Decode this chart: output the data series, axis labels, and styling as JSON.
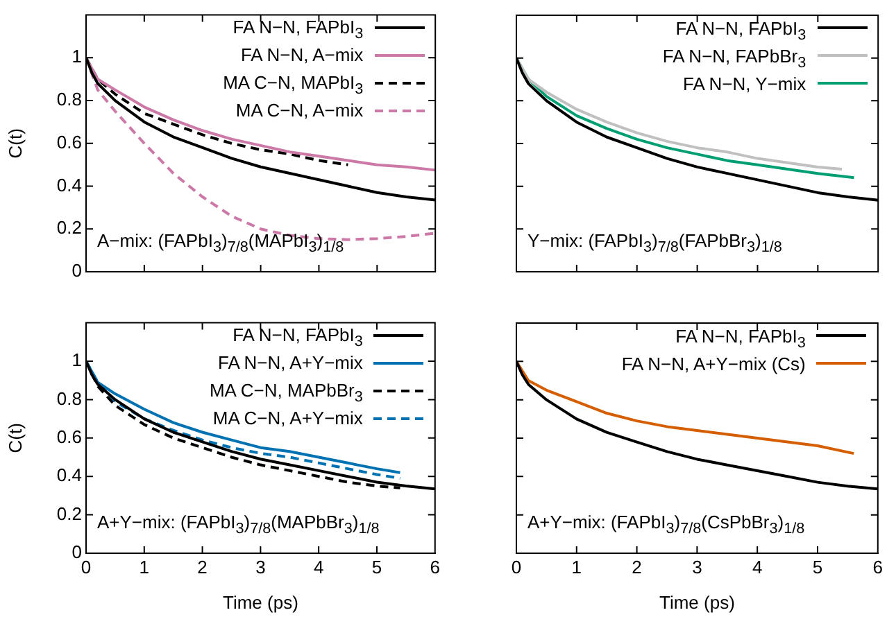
{
  "chart_data": [
    {
      "type": "line",
      "ylabel": "C(t)",
      "xlim": [
        0,
        6
      ],
      "ylim": [
        0,
        1.2
      ],
      "xticks": [
        0,
        1,
        2,
        3,
        4,
        5,
        6
      ],
      "yticks": [
        0,
        0.2,
        0.4,
        0.6,
        0.8,
        1
      ],
      "legend": "top right",
      "tick_labels": "y",
      "annotations": [
        "A−mix: (FAPbI$_{3}$)$_{7/8}$(MAPbI$_{3}$)$_{1/8}$"
      ],
      "series": [
        {
          "name": "FA N−N, FAPbI$_{3}$",
          "color": "#000000",
          "line_style": "solid",
          "x": [
            0,
            0.1,
            0.2,
            0.5,
            1,
            1.5,
            2,
            2.5,
            3,
            3.5,
            4,
            4.5,
            5,
            5.5,
            6
          ],
          "values": [
            1,
            0.93,
            0.88,
            0.8,
            0.7,
            0.63,
            0.58,
            0.53,
            0.49,
            0.46,
            0.43,
            0.4,
            0.37,
            0.35,
            0.335
          ]
        },
        {
          "name": "FA N−N, A−mix",
          "color": "#cc79a7",
          "line_style": "solid",
          "x": [
            0,
            0.2,
            0.5,
            1,
            1.5,
            2,
            2.5,
            3,
            3.5,
            4,
            4.5,
            5,
            5.5,
            6
          ],
          "values": [
            1,
            0.9,
            0.85,
            0.77,
            0.71,
            0.66,
            0.62,
            0.59,
            0.56,
            0.54,
            0.52,
            0.5,
            0.49,
            0.475
          ]
        },
        {
          "name": "MA C−N, MAPbI$_{3}$",
          "color": "#000000",
          "line_style": "dashed",
          "x": [
            0,
            0.2,
            0.5,
            1,
            1.5,
            2,
            2.5,
            3,
            3.5,
            4,
            4.5
          ],
          "values": [
            1,
            0.9,
            0.83,
            0.74,
            0.69,
            0.64,
            0.6,
            0.57,
            0.55,
            0.52,
            0.5
          ]
        },
        {
          "name": "MA C−N, A−mix",
          "color": "#cc79a7",
          "line_style": "dashed",
          "x": [
            0,
            0.2,
            0.5,
            1,
            1.5,
            2,
            2.5,
            3,
            3.5,
            4,
            4.5,
            5,
            5.5,
            6
          ],
          "values": [
            1,
            0.85,
            0.75,
            0.6,
            0.46,
            0.35,
            0.26,
            0.2,
            0.17,
            0.155,
            0.15,
            0.155,
            0.165,
            0.18
          ]
        }
      ]
    },
    {
      "type": "line",
      "xlim": [
        0,
        6
      ],
      "ylim": [
        0,
        1.2
      ],
      "xticks": [
        0,
        1,
        2,
        3,
        4,
        5,
        6
      ],
      "yticks": [
        0,
        0.2,
        0.4,
        0.6,
        0.8,
        1
      ],
      "legend": "top right",
      "tick_labels": false,
      "annotations": [
        "Y−mix: (FAPbI$_{3}$)$_{7/8}$(FAPbBr$_{3}$)$_{1/8}$"
      ],
      "series": [
        {
          "name": "FA N−N, FAPbI$_{3}$",
          "color": "#000000",
          "line_style": "solid",
          "x": [
            0,
            0.1,
            0.2,
            0.5,
            1,
            1.5,
            2,
            2.5,
            3,
            3.5,
            4,
            4.5,
            5,
            5.5,
            6
          ],
          "values": [
            1,
            0.93,
            0.88,
            0.8,
            0.7,
            0.63,
            0.58,
            0.53,
            0.49,
            0.46,
            0.43,
            0.4,
            0.37,
            0.35,
            0.335
          ]
        },
        {
          "name": "FA N−N, FAPbBr$_{3}$",
          "color": "#c0c0c0",
          "line_style": "solid",
          "x": [
            0,
            0.2,
            0.5,
            1,
            1.5,
            2,
            2.5,
            3,
            3.5,
            4,
            4.5,
            5,
            5.4
          ],
          "values": [
            1,
            0.9,
            0.84,
            0.76,
            0.7,
            0.65,
            0.61,
            0.58,
            0.56,
            0.53,
            0.51,
            0.49,
            0.48
          ]
        },
        {
          "name": "FA N−N, Y−mix",
          "color": "#009e73",
          "line_style": "solid",
          "x": [
            0,
            0.2,
            0.5,
            1,
            1.5,
            2,
            2.5,
            3,
            3.5,
            4,
            4.5,
            5,
            5.6
          ],
          "values": [
            1,
            0.9,
            0.82,
            0.73,
            0.67,
            0.62,
            0.58,
            0.55,
            0.52,
            0.5,
            0.48,
            0.46,
            0.44
          ]
        }
      ]
    },
    {
      "type": "line",
      "xlabel": "Time (ps)",
      "ylabel": "C(t)",
      "xlim": [
        0,
        6
      ],
      "ylim": [
        0,
        1.2
      ],
      "xticks": [
        0,
        1,
        2,
        3,
        4,
        5,
        6
      ],
      "yticks": [
        0,
        0.2,
        0.4,
        0.6,
        0.8,
        1
      ],
      "legend": "top right",
      "annotations": [
        "A+Y−mix: (FAPbI$_{3}$)$_{7/8}$(MAPbBr$_{3}$)$_{1/8}$"
      ],
      "series": [
        {
          "name": "FA N−N, FAPbI$_{3}$",
          "color": "#000000",
          "line_style": "solid",
          "x": [
            0,
            0.1,
            0.2,
            0.5,
            1,
            1.5,
            2,
            2.5,
            3,
            3.5,
            4,
            4.5,
            5,
            5.5,
            6
          ],
          "values": [
            1,
            0.93,
            0.88,
            0.8,
            0.7,
            0.63,
            0.58,
            0.53,
            0.49,
            0.46,
            0.43,
            0.4,
            0.37,
            0.35,
            0.335
          ]
        },
        {
          "name": "FA N−N, A+Y−mix",
          "color": "#0072b2",
          "line_style": "solid",
          "x": [
            0,
            0.2,
            0.5,
            1,
            1.5,
            2,
            2.5,
            3,
            3.5,
            4,
            4.5,
            5,
            5.4
          ],
          "values": [
            1,
            0.89,
            0.83,
            0.75,
            0.68,
            0.63,
            0.59,
            0.55,
            0.53,
            0.5,
            0.47,
            0.44,
            0.42
          ]
        },
        {
          "name": "MA C−N, MAPbBr$_{3}$",
          "color": "#000000",
          "line_style": "dashed",
          "x": [
            0,
            0.2,
            0.5,
            1,
            1.5,
            2,
            2.5,
            3,
            3.5,
            4,
            4.5,
            5,
            5.4
          ],
          "values": [
            1,
            0.87,
            0.77,
            0.67,
            0.6,
            0.55,
            0.5,
            0.46,
            0.43,
            0.4,
            0.37,
            0.35,
            0.34
          ]
        },
        {
          "name": "MA C−N, A+Y−mix",
          "color": "#0072b2",
          "line_style": "dashed",
          "x": [
            0,
            0.2,
            0.5,
            1,
            1.5,
            2,
            2.5,
            3,
            3.5,
            4,
            4.5,
            5,
            5.4
          ],
          "values": [
            1,
            0.89,
            0.79,
            0.7,
            0.64,
            0.59,
            0.55,
            0.52,
            0.5,
            0.47,
            0.44,
            0.41,
            0.39
          ]
        }
      ]
    },
    {
      "type": "line",
      "xlabel": "Time (ps)",
      "xlim": [
        0,
        6
      ],
      "ylim": [
        0,
        1.2
      ],
      "xticks": [
        0,
        1,
        2,
        3,
        4,
        5,
        6
      ],
      "yticks": [
        0,
        0.2,
        0.4,
        0.6,
        0.8,
        1
      ],
      "legend": "top right",
      "tick_labels": "x",
      "annotations": [
        "A+Y−mix: (FAPbI$_{3}$)$_{7/8}$(CsPbBr$_{3}$)$_{1/8}$"
      ],
      "series": [
        {
          "name": "FA N−N, FAPbI$_{3}$",
          "color": "#000000",
          "line_style": "solid",
          "x": [
            0,
            0.1,
            0.2,
            0.5,
            1,
            1.5,
            2,
            2.5,
            3,
            3.5,
            4,
            4.5,
            5,
            5.5,
            6
          ],
          "values": [
            1,
            0.93,
            0.88,
            0.8,
            0.7,
            0.63,
            0.58,
            0.53,
            0.49,
            0.46,
            0.43,
            0.4,
            0.37,
            0.35,
            0.335
          ]
        },
        {
          "name": "FA N−N, A+Y−mix (Cs)",
          "color": "#d55e00",
          "line_style": "solid",
          "x": [
            0,
            0.2,
            0.5,
            1,
            1.5,
            2,
            2.5,
            3,
            3.5,
            4,
            4.5,
            5,
            5.6
          ],
          "values": [
            1,
            0.9,
            0.85,
            0.79,
            0.73,
            0.69,
            0.66,
            0.64,
            0.62,
            0.6,
            0.58,
            0.56,
            0.52
          ]
        }
      ]
    }
  ]
}
